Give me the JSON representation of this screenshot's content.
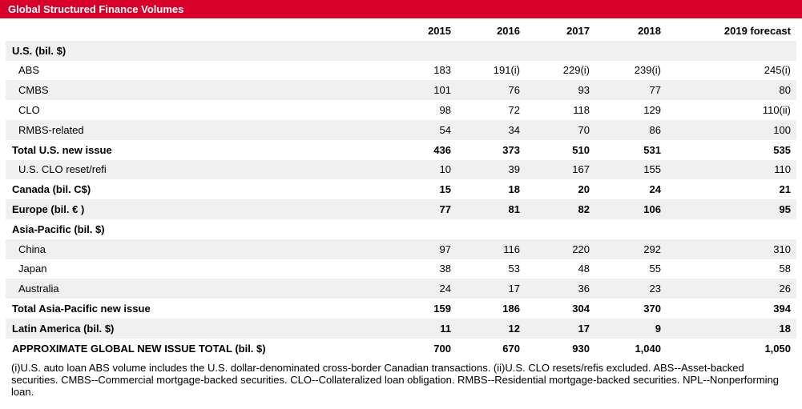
{
  "title": "Global Structured Finance Volumes",
  "columns": [
    "2015",
    "2016",
    "2017",
    "2018",
    "2019 forecast"
  ],
  "rows": [
    {
      "label": "U.S. (bil. $)",
      "values": [
        "",
        "",
        "",
        "",
        ""
      ],
      "bold": true,
      "indent": false,
      "shade": true
    },
    {
      "label": "ABS",
      "values": [
        "183",
        "191(i)",
        "229(i)",
        "239(i)",
        "245(i)"
      ],
      "bold": false,
      "indent": true,
      "shade": false
    },
    {
      "label": "CMBS",
      "values": [
        "101",
        "76",
        "93",
        "77",
        "80"
      ],
      "bold": false,
      "indent": true,
      "shade": true
    },
    {
      "label": "CLO",
      "values": [
        "98",
        "72",
        "118",
        "129",
        "110(ii)"
      ],
      "bold": false,
      "indent": true,
      "shade": false
    },
    {
      "label": "RMBS-related",
      "values": [
        "54",
        "34",
        "70",
        "86",
        "100"
      ],
      "bold": false,
      "indent": true,
      "shade": true
    },
    {
      "label": "Total U.S. new issue",
      "values": [
        "436",
        "373",
        "510",
        "531",
        "535"
      ],
      "bold": true,
      "indent": false,
      "shade": false
    },
    {
      "label": "U.S. CLO reset/refi",
      "values": [
        "10",
        "39",
        "167",
        "155",
        "110"
      ],
      "bold": false,
      "indent": true,
      "shade": true
    },
    {
      "label": "Canada (bil. C$)",
      "values": [
        "15",
        "18",
        "20",
        "24",
        "21"
      ],
      "bold": true,
      "indent": false,
      "shade": false
    },
    {
      "label": "Europe (bil. € )",
      "values": [
        "77",
        "81",
        "82",
        "106",
        "95"
      ],
      "bold": true,
      "indent": false,
      "shade": true
    },
    {
      "label": "Asia-Pacific (bil. $)",
      "values": [
        "",
        "",
        "",
        "",
        ""
      ],
      "bold": true,
      "indent": false,
      "shade": false
    },
    {
      "label": "China",
      "values": [
        "97",
        "116",
        "220",
        "292",
        "310"
      ],
      "bold": false,
      "indent": true,
      "shade": true
    },
    {
      "label": "Japan",
      "values": [
        "38",
        "53",
        "48",
        "55",
        "58"
      ],
      "bold": false,
      "indent": true,
      "shade": false
    },
    {
      "label": "Australia",
      "values": [
        "24",
        "17",
        "36",
        "23",
        "26"
      ],
      "bold": false,
      "indent": true,
      "shade": true
    },
    {
      "label": "Total Asia-Pacific new issue",
      "values": [
        "159",
        "186",
        "304",
        "370",
        "394"
      ],
      "bold": true,
      "indent": false,
      "shade": false
    },
    {
      "label": "Latin America (bil. $)",
      "values": [
        "11",
        "12",
        "17",
        "9",
        "18"
      ],
      "bold": true,
      "indent": false,
      "shade": true
    },
    {
      "label": "APPROXIMATE GLOBAL NEW ISSUE TOTAL (bil. $)",
      "values": [
        "700",
        "670",
        "930",
        "1,040",
        "1,050"
      ],
      "bold": true,
      "indent": false,
      "shade": false
    }
  ],
  "footnote": "(i)U.S. auto loan ABS volume includes the U.S. dollar-denominated cross-border Canadian transactions. (ii)U.S. CLO resets/refis excluded. ABS--Asset-backed securities. CMBS--Commercial mortgage-backed securities. CLO--Collateralized loan obligation. RMBS--Residential mortgage-backed securities. NPL--Nonperforming loan."
}
